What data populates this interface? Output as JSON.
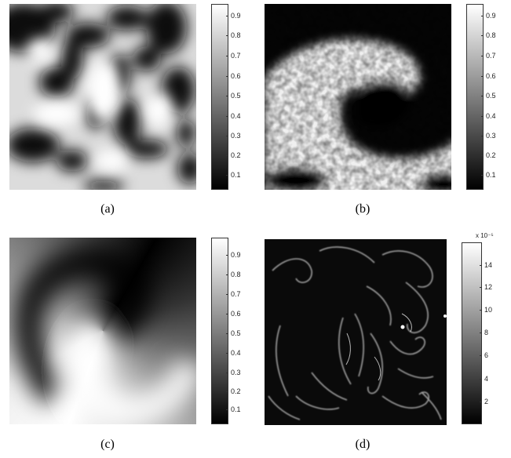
{
  "panels": [
    {
      "caption": "(a)",
      "colorbar": {
        "ticks": [
          "0.9",
          "0.8",
          "0.7",
          "0.6",
          "0.5",
          "0.4",
          "0.3",
          "0.2",
          "0.1"
        ],
        "exponent": ""
      }
    },
    {
      "caption": "(b)",
      "colorbar": {
        "ticks": [
          "0.9",
          "0.8",
          "0.7",
          "0.6",
          "0.5",
          "0.4",
          "0.3",
          "0.2",
          "0.1"
        ],
        "exponent": ""
      }
    },
    {
      "caption": "(c)",
      "colorbar": {
        "ticks": [
          "0.9",
          "0.8",
          "0.7",
          "0.6",
          "0.5",
          "0.4",
          "0.3",
          "0.2",
          "0.1"
        ],
        "exponent": ""
      }
    },
    {
      "caption": "(d)",
      "colorbar": {
        "ticks": [
          "14",
          "12",
          "10",
          "8",
          "6",
          "4",
          "2"
        ],
        "exponent": "x 10⁻⁵"
      }
    }
  ],
  "colors": {
    "low": "#000000",
    "high": "#ffffff",
    "border": "#333333"
  }
}
